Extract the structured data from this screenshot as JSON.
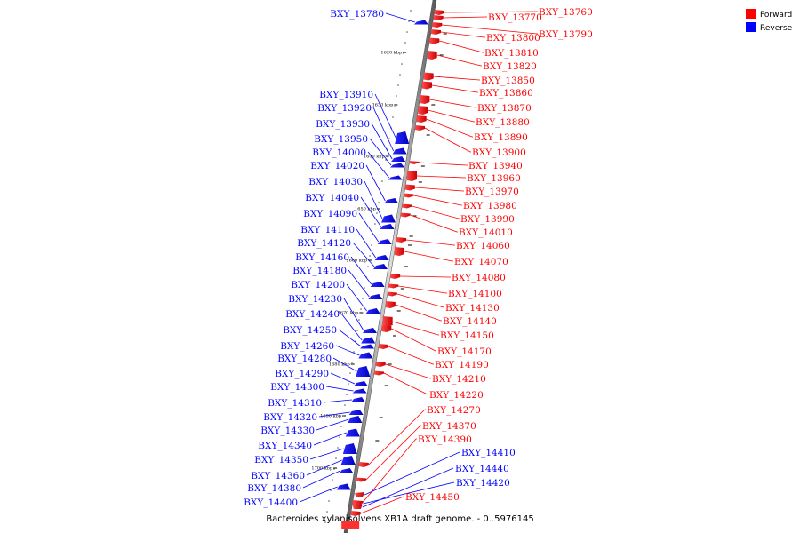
{
  "caption": "Bacteroides xylanisolvens XB1A draft genome. - 0..5976145",
  "legend": [
    {
      "label": "Forward",
      "color": "#ff0000"
    },
    {
      "label": "Reverse",
      "color": "#0000ff"
    }
  ],
  "ticks": [
    "1620 kbp",
    "1630 kbp",
    "1640 kbp",
    "1650 kbp",
    "1660 kbp",
    "1670 kbp",
    "1680 kbp",
    "1690 kbp",
    "1700 kbp"
  ],
  "forward_genes": [
    "BXY_13760",
    "BXY_13770",
    "BXY_13790",
    "BXY_13800",
    "BXY_13810",
    "BXY_13820",
    "BXY_13850",
    "BXY_13860",
    "BXY_13870",
    "BXY_13880",
    "BXY_13890",
    "BXY_13900",
    "BXY_13940",
    "BXY_13960",
    "BXY_13970",
    "BXY_13980",
    "BXY_13990",
    "BXY_14010",
    "BXY_14060",
    "BXY_14070",
    "BXY_14080",
    "BXY_14100",
    "BXY_14130",
    "BXY_14140",
    "BXY_14150",
    "BXY_14170",
    "BXY_14190",
    "BXY_14210",
    "BXY_14220",
    "BXY_14270",
    "BXY_14370",
    "BXY_14390",
    "BXY_14450"
  ],
  "reverse_genes": [
    "BXY_13780",
    "BXY_13910",
    "BXY_13920",
    "BXY_13930",
    "BXY_13950",
    "BXY_14000",
    "BXY_14020",
    "BXY_14030",
    "BXY_14040",
    "BXY_14090",
    "BXY_14110",
    "BXY_14120",
    "BXY_14160",
    "BXY_14180",
    "BXY_14200",
    "BXY_14230",
    "BXY_14240",
    "BXY_14250",
    "BXY_14260",
    "BXY_14280",
    "BXY_14290",
    "BXY_14300",
    "BXY_14310",
    "BXY_14320",
    "BXY_14330",
    "BXY_14340",
    "BXY_14350",
    "BXY_14360",
    "BXY_14380",
    "BXY_14400",
    "BXY_14410",
    "BXY_14420",
    "BXY_14440"
  ]
}
